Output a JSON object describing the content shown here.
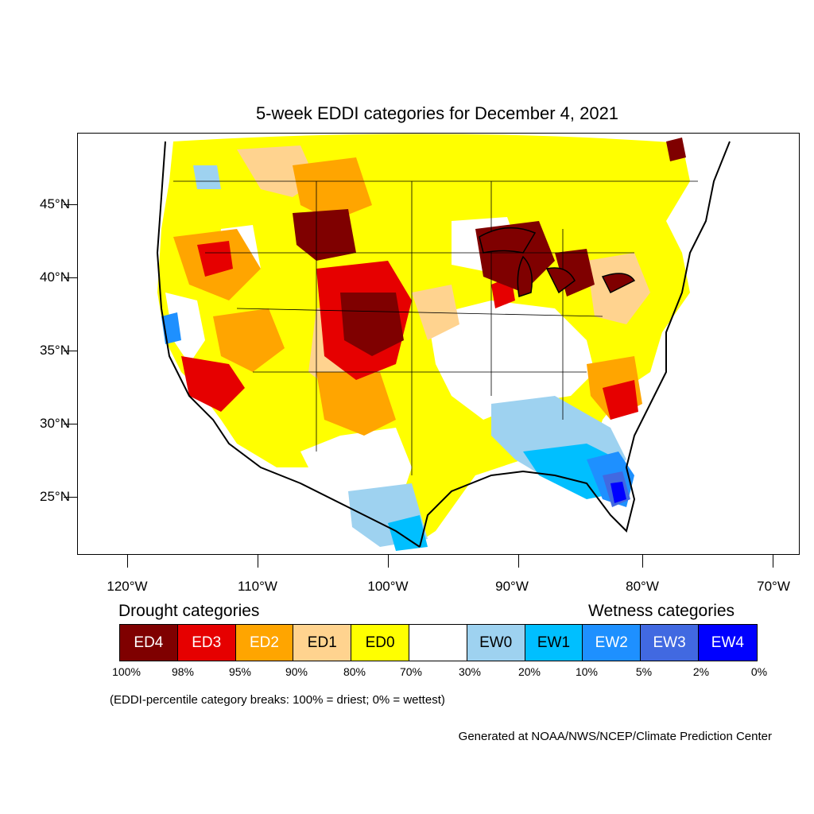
{
  "title": "5-week EDDI categories for December 4, 2021",
  "map": {
    "region": "Contiguous United States",
    "latitude_labels": [
      "45°N",
      "40°N",
      "35°N",
      "30°N",
      "25°N"
    ],
    "longitude_labels": [
      "120°W",
      "110°W",
      "100°W",
      "90°W",
      "80°W",
      "70°W"
    ],
    "colors": {
      "ED4": "#7f0000",
      "ED3": "#e60000",
      "ED2": "#ffa500",
      "ED1": "#ffd38f",
      "ED0": "#ffff00",
      "neutral": "#ffffff",
      "EW0": "#9ed2f0",
      "EW1": "#00bfff",
      "EW2": "#1e90ff",
      "EW3": "#4169e1",
      "EW4": "#0000ff"
    }
  },
  "legend": {
    "drought_heading": "Drought categories",
    "wetness_heading": "Wetness categories",
    "categories": [
      {
        "label": "ED4",
        "color": "#7f0000",
        "text_color": "#ffffff"
      },
      {
        "label": "ED3",
        "color": "#e60000",
        "text_color": "#ffffff"
      },
      {
        "label": "ED2",
        "color": "#ffa500",
        "text_color": "#ffffff"
      },
      {
        "label": "ED1",
        "color": "#ffd38f",
        "text_color": "#000000"
      },
      {
        "label": "ED0",
        "color": "#ffff00",
        "text_color": "#000000"
      },
      {
        "label": "",
        "color": "#ffffff",
        "text_color": "#000000"
      },
      {
        "label": "EW0",
        "color": "#9ed2f0",
        "text_color": "#000000"
      },
      {
        "label": "EW1",
        "color": "#00bfff",
        "text_color": "#000000"
      },
      {
        "label": "EW2",
        "color": "#1e90ff",
        "text_color": "#ffffff"
      },
      {
        "label": "EW3",
        "color": "#4169e1",
        "text_color": "#ffffff"
      },
      {
        "label": "EW4",
        "color": "#0000ff",
        "text_color": "#ffffff"
      }
    ],
    "percent_breaks": [
      "100%",
      "98%",
      "95%",
      "90%",
      "80%",
      "70%",
      "30%",
      "20%",
      "10%",
      "5%",
      "2%",
      "0%"
    ]
  },
  "note": "(EDDI-percentile category breaks: 100% = driest; 0% = wettest)",
  "credit": "Generated at NOAA/NWS/NCEP/Climate Prediction Center"
}
